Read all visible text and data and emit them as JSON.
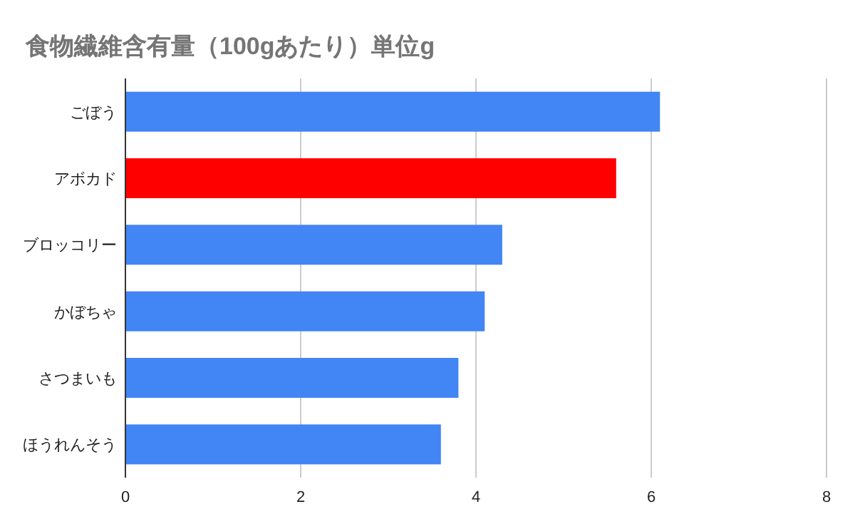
{
  "chart_data": {
    "type": "bar",
    "orientation": "horizontal",
    "title": "食物繊維含有量（100gあたり）単位g",
    "categories": [
      "ごぼう",
      "アボカド",
      "ブロッコリー",
      "かぼちゃ",
      "さつまいも",
      "ほうれんそう"
    ],
    "values": [
      6.1,
      5.6,
      4.3,
      4.1,
      3.8,
      3.6
    ],
    "colors": [
      "#4285f4",
      "#ff0000",
      "#4285f4",
      "#4285f4",
      "#4285f4",
      "#4285f4"
    ],
    "xlim": [
      0,
      8
    ],
    "xticks": [
      0,
      2,
      4,
      6,
      8
    ],
    "grid": "x"
  }
}
